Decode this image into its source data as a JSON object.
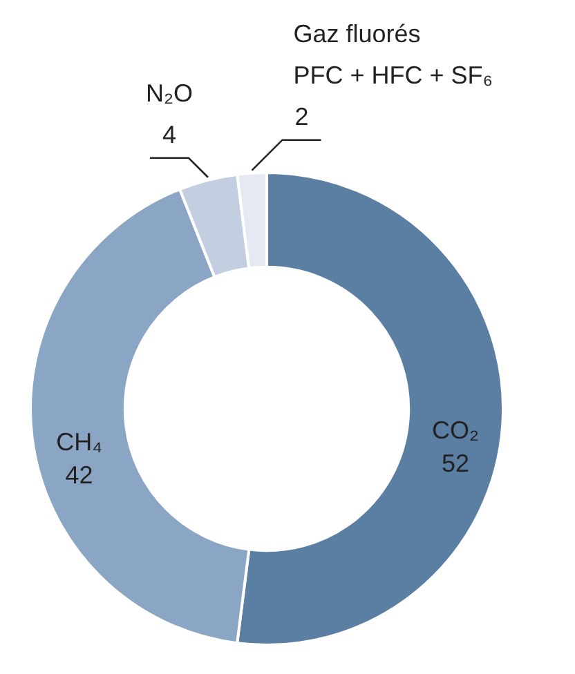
{
  "chart_data": {
    "type": "donut",
    "categories": [
      "CO₂",
      "CH₄",
      "N₂O",
      "Gaz fluorés\nPFC + HFC + SF₆"
    ],
    "values": [
      52,
      42,
      4,
      2
    ],
    "colors": [
      "#5a7fa3",
      "#8ba5c4",
      "#c3cfe0",
      "#e4e9f2"
    ],
    "data_labels": true
  }
}
